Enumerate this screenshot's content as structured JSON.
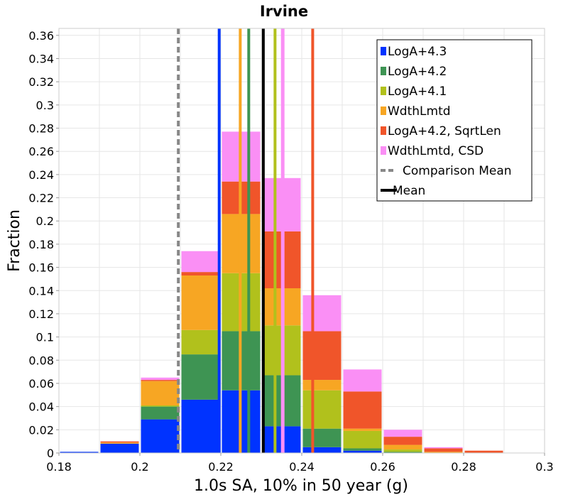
{
  "chart_data": {
    "type": "bar",
    "title": "Irvine",
    "xlabel": "1.0s SA, 10% in 50 year (g)",
    "ylabel": "Fraction",
    "xlim": [
      0.18,
      0.3
    ],
    "ylim": [
      0,
      0.366
    ],
    "x_ticks": [
      "0.18",
      "0.2",
      "0.22",
      "0.24",
      "0.26",
      "0.28",
      "0.3"
    ],
    "x_tick_values": [
      0.18,
      0.2,
      0.22,
      0.24,
      0.26,
      0.28,
      0.3
    ],
    "y_ticks": [
      "0",
      "0.02",
      "0.04",
      "0.06",
      "0.08",
      "0.1",
      "0.12",
      "0.14",
      "0.16",
      "0.18",
      "0.2",
      "0.22",
      "0.24",
      "0.26",
      "0.28",
      "0.3",
      "0.32",
      "0.34",
      "0.36"
    ],
    "y_tick_values": [
      0,
      0.02,
      0.04,
      0.06,
      0.08,
      0.1,
      0.12,
      0.14,
      0.16,
      0.18,
      0.2,
      0.22,
      0.24,
      0.26,
      0.28,
      0.3,
      0.32,
      0.34,
      0.36
    ],
    "grid": true,
    "stacked": true,
    "bins": [
      0.185,
      0.195,
      0.205,
      0.215,
      0.225,
      0.235,
      0.245,
      0.255,
      0.265,
      0.275,
      0.285,
      0.295
    ],
    "bin_width": 0.01,
    "series": [
      {
        "name": "LogA+4.3",
        "color": "#0033ff",
        "values": [
          0.001,
          0.008,
          0.029,
          0.046,
          0.054,
          0.023,
          0.005,
          0.002,
          0.0,
          0.0,
          0.0,
          0.0
        ]
      },
      {
        "name": "LogA+4.2",
        "color": "#3e9453",
        "values": [
          0.0,
          0.0,
          0.011,
          0.039,
          0.051,
          0.044,
          0.016,
          0.002,
          0.001,
          0.0,
          0.0,
          0.0
        ]
      },
      {
        "name": "LogA+4.1",
        "color": "#b1c11c",
        "values": [
          0.0,
          0.0,
          0.001,
          0.021,
          0.05,
          0.043,
          0.033,
          0.015,
          0.002,
          0.0,
          0.0,
          0.0
        ]
      },
      {
        "name": "WdthLmtd",
        "color": "#f7a623",
        "values": [
          0.0,
          0.001,
          0.021,
          0.047,
          0.051,
          0.032,
          0.009,
          0.002,
          0.004,
          0.001,
          0.0,
          0.0
        ]
      },
      {
        "name": "LogA+4.2, SqrtLen",
        "color": "#f0552a",
        "values": [
          0.0,
          0.001,
          0.001,
          0.003,
          0.028,
          0.049,
          0.042,
          0.032,
          0.007,
          0.003,
          0.002,
          0.0
        ]
      },
      {
        "name": "WdthLmtd, CSD",
        "color": "#fa8ff5",
        "values": [
          0.0,
          0.0,
          0.002,
          0.018,
          0.043,
          0.046,
          0.031,
          0.019,
          0.006,
          0.001,
          0.0,
          0.0
        ]
      }
    ],
    "vertical_lines": [
      {
        "name": "LogA+4.3 mean",
        "x": 0.2196,
        "color": "#0033ff",
        "width": 4,
        "dash": false
      },
      {
        "name": "WdthLmtd mean",
        "x": 0.2248,
        "color": "#f7a623",
        "width": 4,
        "dash": false
      },
      {
        "name": "LogA+4.2 mean",
        "x": 0.2269,
        "color": "#3e9453",
        "width": 4,
        "dash": false
      },
      {
        "name": "LogA+4.1 mean",
        "x": 0.2334,
        "color": "#b1c11c",
        "width": 4,
        "dash": false
      },
      {
        "name": "WdthLmtd, CSD mean",
        "x": 0.2353,
        "color": "#fa8ff5",
        "width": 5,
        "dash": false
      },
      {
        "name": "LogA+4.2, SqrtLen mean",
        "x": 0.2427,
        "color": "#f0552a",
        "width": 4,
        "dash": false
      },
      {
        "name": "Comparison Mean",
        "x": 0.2095,
        "color": "#888888",
        "width": 4,
        "dash": true
      },
      {
        "name": "Mean",
        "x": 0.2305,
        "color": "#000000",
        "width": 4,
        "dash": false
      }
    ],
    "legend": {
      "placement": "top-right",
      "entries": [
        {
          "label": "LogA+4.3",
          "color": "#0033ff",
          "style": "box"
        },
        {
          "label": "LogA+4.2",
          "color": "#3e9453",
          "style": "box"
        },
        {
          "label": "LogA+4.1",
          "color": "#b1c11c",
          "style": "box"
        },
        {
          "label": "WdthLmtd",
          "color": "#f7a623",
          "style": "box"
        },
        {
          "label": "LogA+4.2, SqrtLen",
          "color": "#f0552a",
          "style": "box"
        },
        {
          "label": "WdthLmtd, CSD",
          "color": "#fa8ff5",
          "style": "box"
        },
        {
          "label": "Comparison Mean",
          "color": "#888888",
          "style": "dash"
        },
        {
          "label": "Mean",
          "color": "#000000",
          "style": "line"
        }
      ]
    }
  }
}
